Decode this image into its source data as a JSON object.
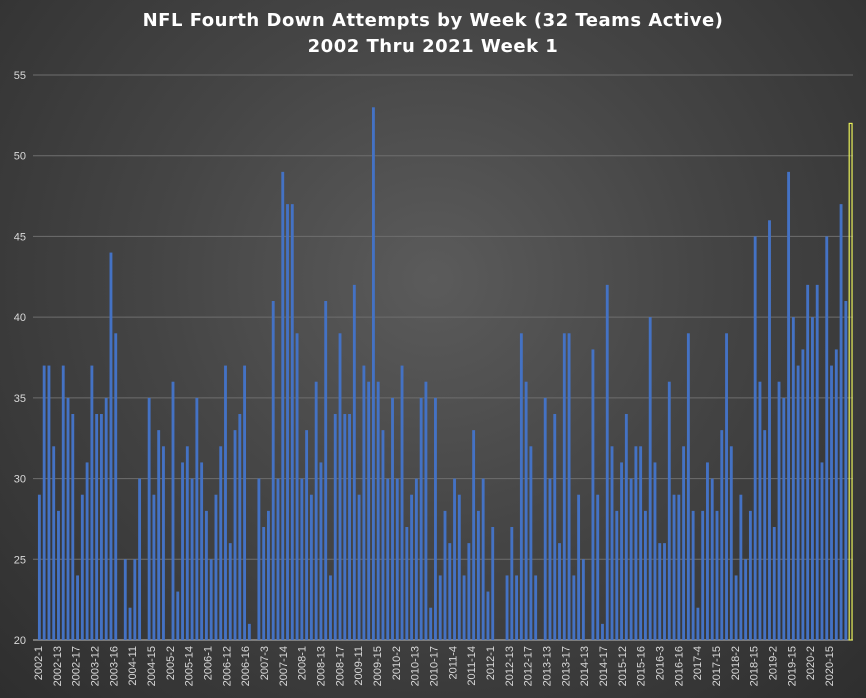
{
  "chart_data": {
    "type": "bar",
    "title": "NFL Fourth Down Attempts by Week (32 Teams Active)",
    "subtitle": "2002 Thru 2021 Week 1",
    "xlabel": "",
    "ylabel": "",
    "ylim": [
      20,
      55
    ],
    "yticks": [
      20,
      25,
      30,
      35,
      40,
      45,
      50,
      55
    ],
    "grid": true,
    "legend": "none",
    "bar_color": "#4472c4",
    "highlight_color": "#e8f05a",
    "x_tick_labels": [
      "2002-1",
      "2002-13",
      "2002-17",
      "2003-12",
      "2003-16",
      "2004-11",
      "2004-15",
      "2005-2",
      "2005-14",
      "2006-1",
      "2006-12",
      "2006-16",
      "2007-3",
      "2007-14",
      "2008-1",
      "2008-13",
      "2008-17",
      "2009-11",
      "2009-15",
      "2010-2",
      "2010-13",
      "2010-17",
      "2011-4",
      "2011-14",
      "2012-1",
      "2012-13",
      "2012-17",
      "2013-13",
      "2013-17",
      "2014-13",
      "2014-17",
      "2015-12",
      "2015-16",
      "2016-3",
      "2016-16",
      "2017-4",
      "2017-15",
      "2018-2",
      "2018-15",
      "2019-2",
      "2019-15",
      "2020-2",
      "2020-15"
    ],
    "values": [
      29,
      37,
      37,
      32,
      28,
      37,
      35,
      34,
      24,
      29,
      31,
      37,
      34,
      34,
      35,
      44,
      39,
      20,
      25,
      22,
      25,
      30,
      20,
      35,
      29,
      33,
      32,
      20,
      36,
      23,
      31,
      32,
      30,
      35,
      31,
      28,
      25,
      29,
      32,
      37,
      26,
      33,
      34,
      37,
      21,
      20,
      30,
      27,
      28,
      41,
      30,
      49,
      47,
      47,
      39,
      30,
      33,
      29,
      36,
      31,
      41,
      24,
      34,
      39,
      34,
      34,
      42,
      29,
      37,
      36,
      53,
      36,
      33,
      30,
      35,
      30,
      37,
      27,
      29,
      30,
      35,
      36,
      22,
      35,
      24,
      28,
      26,
      30,
      29,
      24,
      26,
      33,
      28,
      30,
      23,
      27,
      20,
      20,
      24,
      27,
      24,
      39,
      36,
      32,
      24,
      20,
      35,
      30,
      34,
      26,
      39,
      39,
      24,
      29,
      25,
      20,
      38,
      29,
      21,
      42,
      32,
      28,
      31,
      34,
      30,
      32,
      32,
      28,
      40,
      31,
      26,
      26,
      36,
      29,
      29,
      32,
      39,
      28,
      22,
      28,
      31,
      30,
      28,
      33,
      39,
      32,
      24,
      29,
      25,
      28,
      45,
      36,
      33,
      46,
      27,
      36,
      35,
      49,
      40,
      37,
      38,
      42,
      40,
      42,
      31,
      45,
      37,
      38,
      47,
      41,
      52
    ]
  }
}
